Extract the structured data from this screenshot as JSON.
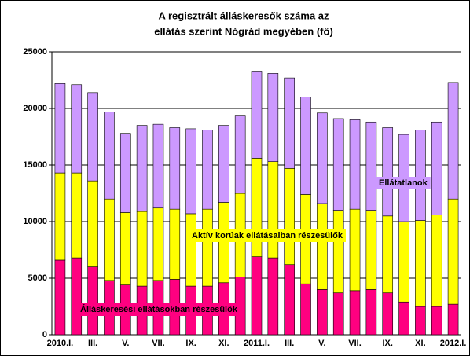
{
  "chart_data": {
    "type": "stacked_bar",
    "title": [
      "A regisztrált álláskeresők száma az",
      "ellátás szerint Nógrád megyében (fő)"
    ],
    "categories": [
      "2010.I.",
      null,
      "III.",
      null,
      "V.",
      null,
      "VII.",
      null,
      "IX.",
      null,
      "XI.",
      null,
      "2011.I.",
      null,
      "III.",
      null,
      "V.",
      null,
      "VII.",
      null,
      "IX.",
      null,
      "XI.",
      null,
      "2012.I."
    ],
    "series": [
      {
        "name": "Álláskeresési ellátásokban részesülők",
        "color": "#ff0080",
        "values": [
          6600,
          6800,
          6000,
          4800,
          4400,
          4300,
          4800,
          4900,
          4300,
          4300,
          4600,
          5100,
          6900,
          6800,
          6200,
          4500,
          4000,
          3700,
          3900,
          4000,
          3700,
          2900,
          2500,
          2500,
          2700
        ]
      },
      {
        "name": "Aktív korúak ellátásaiban részesülők",
        "color": "#ffff00",
        "values": [
          7700,
          7500,
          7600,
          7200,
          6400,
          6600,
          6400,
          6200,
          6400,
          6800,
          7100,
          7400,
          8700,
          8500,
          8500,
          7900,
          7600,
          7300,
          7200,
          7000,
          6800,
          7100,
          7600,
          8100,
          9300
        ]
      },
      {
        "name": "Ellátatlanok",
        "color": "#cc99ff",
        "values": [
          7900,
          7800,
          7800,
          7700,
          7000,
          7600,
          7400,
          7200,
          7500,
          7000,
          6800,
          6900,
          7700,
          7800,
          8000,
          8600,
          8000,
          8100,
          7900,
          7800,
          7800,
          7700,
          8000,
          8200,
          10300
        ]
      }
    ],
    "ylim": [
      0,
      25000
    ],
    "yticks": [
      0,
      5000,
      10000,
      15000,
      20000,
      25000
    ],
    "grid": true
  }
}
